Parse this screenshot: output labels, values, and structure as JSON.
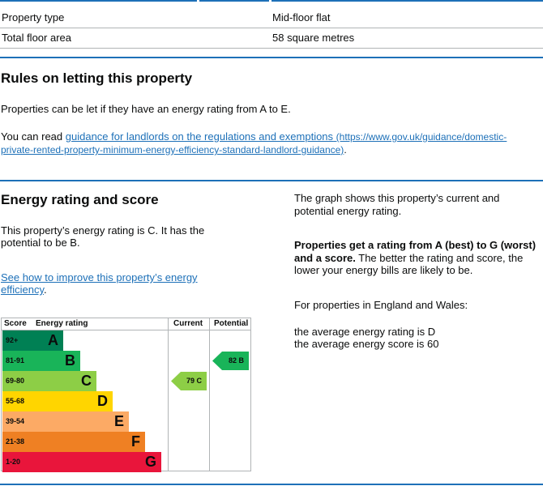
{
  "summary": {
    "rows": [
      {
        "label": "Property type",
        "value": "Mid-floor flat"
      },
      {
        "label": "Total floor area",
        "value": "58 square metres"
      }
    ]
  },
  "letting": {
    "heading": "Rules on letting this property",
    "para1": "Properties can be let if they have an energy rating from A to E.",
    "para2_prefix": "You can read ",
    "link_text": "guidance for landlords on the regulations and exemptions",
    "link_url_line1": "(https://www.gov.uk/guidance/domestic-",
    "link_url_line2": "private-rented-property-minimum-energy-efficiency-standard-landlord-guidance)",
    "para2_suffix": "."
  },
  "energy": {
    "heading": "Energy rating and score",
    "rating_line1": "This property’s energy rating is C. It has the",
    "rating_line2": "potential to be B.",
    "improve_line1": "See how to improve this property’s energy",
    "improve_line2": "efficiency",
    "improve_suffix": ".",
    "right_p1_line1": "The graph shows this property’s current and",
    "right_p1_line2": "potential energy rating.",
    "right_p2_bold_line1": "Properties get a rating from A (best) to G (worst)",
    "right_p2_bold_line2": "and a score.",
    "right_p2_rest_line2": " The better the rating and score, the",
    "right_p2_line3": "lower your energy bills are likely to be.",
    "right_p3": "For properties in England and Wales:",
    "right_p4_line1": "the average energy rating is D",
    "right_p4_line2": "the average energy score is 60"
  },
  "chart_data": {
    "type": "bar",
    "headers": {
      "score": "Score",
      "rating": "Energy rating",
      "current": "Current",
      "potential": "Potential"
    },
    "bands": [
      {
        "range": "92+",
        "letter": "A",
        "color": "#008054"
      },
      {
        "range": "81-91",
        "letter": "B",
        "color": "#19b459"
      },
      {
        "range": "69-80",
        "letter": "C",
        "color": "#8dce46"
      },
      {
        "range": "55-68",
        "letter": "D",
        "color": "#ffd500"
      },
      {
        "range": "39-54",
        "letter": "E",
        "color": "#fcaa65"
      },
      {
        "range": "21-38",
        "letter": "F",
        "color": "#ef8023"
      },
      {
        "range": "1-20",
        "letter": "G",
        "color": "#e9153b"
      }
    ],
    "current": {
      "score": 79,
      "letter": "C",
      "label": "79 C",
      "color": "#8dce46"
    },
    "potential": {
      "score": 82,
      "letter": "B",
      "label": "82 B",
      "color": "#19b459"
    }
  }
}
